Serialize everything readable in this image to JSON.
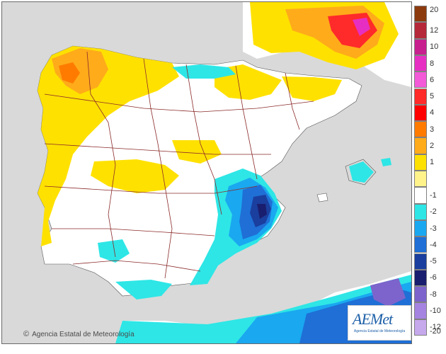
{
  "credit": {
    "text": "Agencia Estatal de Meteorología",
    "copyright": "©"
  },
  "logo": {
    "mark": "AEMet",
    "subtitle": "Agencia Estatal de Meteorología"
  },
  "legend": {
    "labels": [
      "20",
      "12",
      "10",
      "8",
      "6",
      "5",
      "4",
      "3",
      "2",
      "1",
      "-1",
      "-2",
      "-3",
      "-4",
      "-5",
      "-6",
      "-8",
      "-10",
      "-12",
      "-20"
    ],
    "colors": [
      "#8b3a0e",
      "#b5283a",
      "#c81f8e",
      "#e62fc2",
      "#f25ad7",
      "#ff2a2a",
      "#ff0000",
      "#ff7b00",
      "#ffab1a",
      "#ffe100",
      "#fff38a",
      "#ffffff",
      "#2ee6e6",
      "#1aa8f0",
      "#1f6fd6",
      "#1a3f9e",
      "#1a1e6e",
      "#7c64cc",
      "#a583e0",
      "#c6a8ec"
    ]
  },
  "colors": {
    "sea": "#d9d9d9",
    "land_neutral": "#ffffff",
    "warm1": "#ffe100",
    "warm2": "#ffab1a",
    "warm3": "#ff7b00",
    "warm4": "#ff2a2a",
    "cool1": "#2ee6e6",
    "cool2": "#1aa8f0",
    "cool3": "#1f6fd6",
    "cool4": "#1a3f9e",
    "border": "#8b2a2a"
  }
}
